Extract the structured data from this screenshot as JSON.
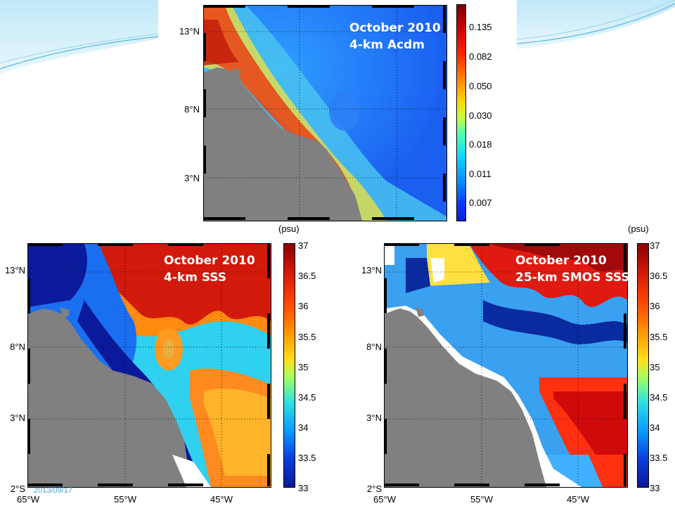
{
  "slide_date": "2013/09/17",
  "colors": {
    "accent": "#8fd3f0",
    "land": "#808080",
    "low": "#0a1a9a",
    "high": "#8a0000"
  },
  "panel_top": {
    "title": "October 2010",
    "subtitle": "4-km Acdm",
    "lat_labels": [
      "13°N",
      "8°N",
      "3°N"
    ],
    "colorbar_labels": [
      "0.135",
      "0.082",
      "0.050",
      "0.030",
      "0.018",
      "0.011",
      "0.007"
    ]
  },
  "panel_left": {
    "title": "October 2010",
    "subtitle": "4-km SSS",
    "unit": "(psu)",
    "lat_labels": [
      "13°N",
      "8°N",
      "3°N",
      "2°S"
    ],
    "lon_labels": [
      "65°W",
      "55°W",
      "45°W"
    ],
    "colorbar_labels": [
      "37",
      "36.5",
      "36",
      "35.5",
      "35",
      "34.5",
      "34",
      "33.5",
      "33"
    ]
  },
  "panel_right": {
    "title": "October 2010",
    "subtitle": "25-km SMOS SSS",
    "unit": "(psu)",
    "lat_labels": [
      "13°N",
      "8°N",
      "3°N",
      "2°S"
    ],
    "lon_labels": [
      "65°W",
      "55°W",
      "45°W"
    ],
    "colorbar_labels": [
      "37",
      "36.5",
      "36",
      "35.5",
      "35",
      "34.5",
      "34",
      "33.5",
      "33"
    ]
  }
}
